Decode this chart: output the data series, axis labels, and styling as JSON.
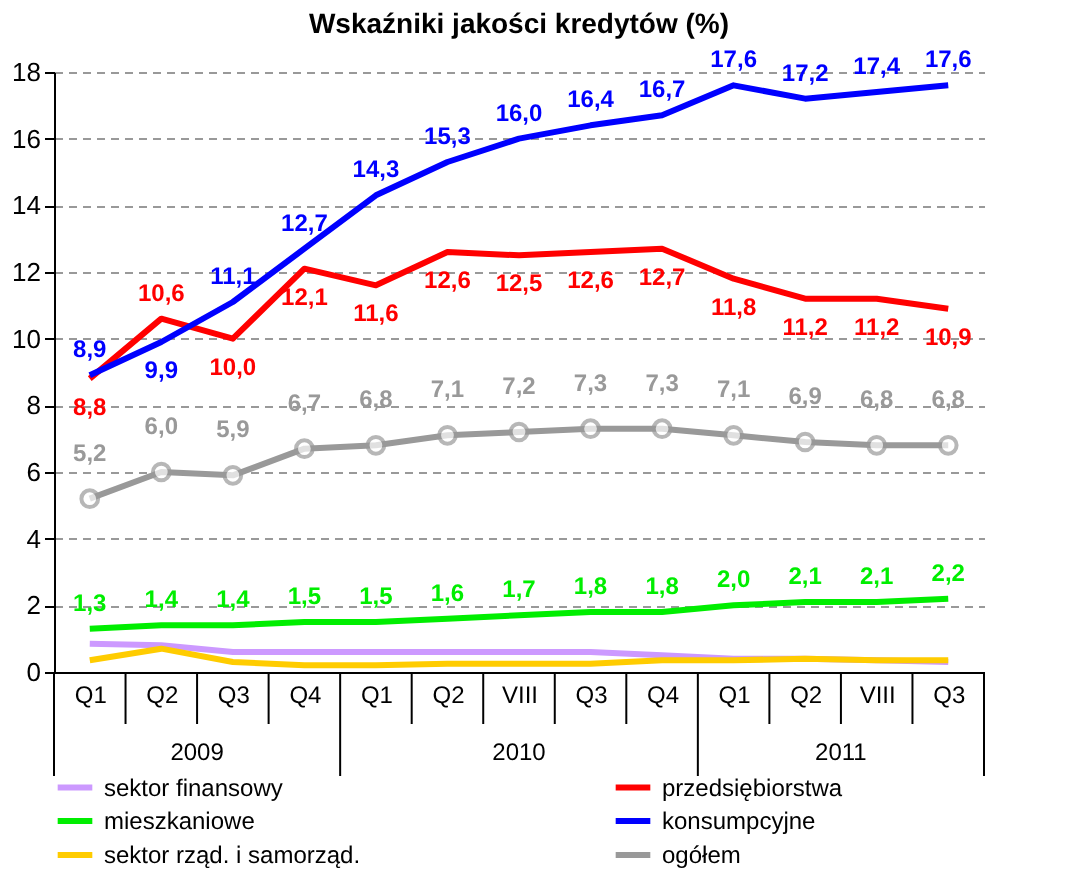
{
  "chart_data": {
    "type": "line",
    "title": "Wskaźniki jakości kredytów (%)",
    "categories": [
      "Q1",
      "Q2",
      "Q3",
      "Q4",
      "Q1",
      "Q2",
      "VIII",
      "Q3",
      "Q4",
      "Q1",
      "Q2",
      "VIII",
      "Q3"
    ],
    "annotations": [
      "2009",
      "2010",
      "2011"
    ],
    "ylim": [
      0,
      18
    ],
    "yticks": [
      0,
      2,
      4,
      6,
      8,
      10,
      12,
      14,
      16,
      18
    ],
    "grid": "y",
    "legend": "bottom",
    "series": [
      {
        "name": "sektor finansowy",
        "color": "#cc99ff",
        "values": [
          0.85,
          0.8,
          0.6,
          0.6,
          0.6,
          0.6,
          0.6,
          0.6,
          0.5,
          0.4,
          0.4,
          0.35,
          0.3
        ]
      },
      {
        "name": "przedsiębiorstwa",
        "color": "#ff0000",
        "values": [
          8.8,
          10.6,
          10.0,
          12.1,
          11.6,
          12.6,
          12.5,
          12.6,
          12.7,
          11.8,
          11.2,
          11.2,
          10.9
        ],
        "value_labels": [
          "8,8",
          "10,6",
          "10,0",
          "12,1",
          "11,6",
          "12,6",
          "12,5",
          "12,6",
          "12,7",
          "11,8",
          "11,2",
          "11,2",
          "10,9"
        ]
      },
      {
        "name": "mieszkaniowe",
        "color": "#00ee00",
        "values": [
          1.3,
          1.4,
          1.4,
          1.5,
          1.5,
          1.6,
          1.7,
          1.8,
          1.8,
          2.0,
          2.1,
          2.1,
          2.2
        ],
        "value_labels": [
          "1,3",
          "1,4",
          "1,4",
          "1,5",
          "1,5",
          "1,6",
          "1,7",
          "1,8",
          "1,8",
          "2,0",
          "2,1",
          "2,1",
          "2,2"
        ]
      },
      {
        "name": "konsumpcyjne",
        "color": "#0000ff",
        "values": [
          8.9,
          9.9,
          11.1,
          12.7,
          14.3,
          15.3,
          16.0,
          16.4,
          16.7,
          17.6,
          17.2,
          17.4,
          17.6
        ],
        "value_labels": [
          "8,9",
          "9,9",
          "11,1",
          "12,7",
          "14,3",
          "15,3",
          "16,0",
          "16,4",
          "16,7",
          "17,6",
          "17,2",
          "17,4",
          "17,6"
        ]
      },
      {
        "name": "sektor rząd. i samorząd.",
        "color": "#ffcc00",
        "values": [
          0.35,
          0.7,
          0.3,
          0.2,
          0.2,
          0.25,
          0.25,
          0.25,
          0.35,
          0.35,
          0.4,
          0.35,
          0.35
        ]
      },
      {
        "name": "ogółem",
        "color": "#999999",
        "marker": "circle",
        "values": [
          5.2,
          6.0,
          5.9,
          6.7,
          6.8,
          7.1,
          7.2,
          7.3,
          7.3,
          7.1,
          6.9,
          6.8,
          6.8
        ],
        "value_labels": [
          "5,2",
          "6,0",
          "5,9",
          "6,7",
          "6,8",
          "7,1",
          "7,2",
          "7,3",
          "7,3",
          "7,1",
          "6,9",
          "6,8",
          "6,8"
        ]
      }
    ]
  }
}
